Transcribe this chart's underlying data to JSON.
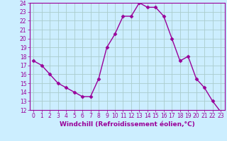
{
  "x": [
    0,
    1,
    2,
    3,
    4,
    5,
    6,
    7,
    8,
    9,
    10,
    11,
    12,
    13,
    14,
    15,
    16,
    17,
    18,
    19,
    20,
    21,
    22,
    23
  ],
  "y": [
    17.5,
    17.0,
    16.0,
    15.0,
    14.5,
    14.0,
    13.5,
    13.5,
    15.5,
    19.0,
    20.5,
    22.5,
    22.5,
    24.0,
    23.5,
    23.5,
    22.5,
    20.0,
    17.5,
    18.0,
    15.5,
    14.5,
    13.0,
    11.8
  ],
  "line_color": "#990099",
  "marker": "D",
  "marker_size": 2.5,
  "bg_color": "#cceeff",
  "grid_color": "#aacccc",
  "xlabel": "Windchill (Refroidissement éolien,°C)",
  "xlim": [
    -0.5,
    23.5
  ],
  "ylim": [
    12,
    24
  ],
  "yticks": [
    12,
    13,
    14,
    15,
    16,
    17,
    18,
    19,
    20,
    21,
    22,
    23,
    24
  ],
  "xticks": [
    0,
    1,
    2,
    3,
    4,
    5,
    6,
    7,
    8,
    9,
    10,
    11,
    12,
    13,
    14,
    15,
    16,
    17,
    18,
    19,
    20,
    21,
    22,
    23
  ],
  "xtick_labels": [
    "0",
    "1",
    "2",
    "3",
    "4",
    "5",
    "6",
    "7",
    "8",
    "9",
    "10",
    "11",
    "12",
    "13",
    "14",
    "15",
    "16",
    "17",
    "18",
    "19",
    "20",
    "21",
    "22",
    "23"
  ],
  "tick_fontsize": 5.5,
  "xlabel_fontsize": 6.5,
  "line_width": 1.0
}
